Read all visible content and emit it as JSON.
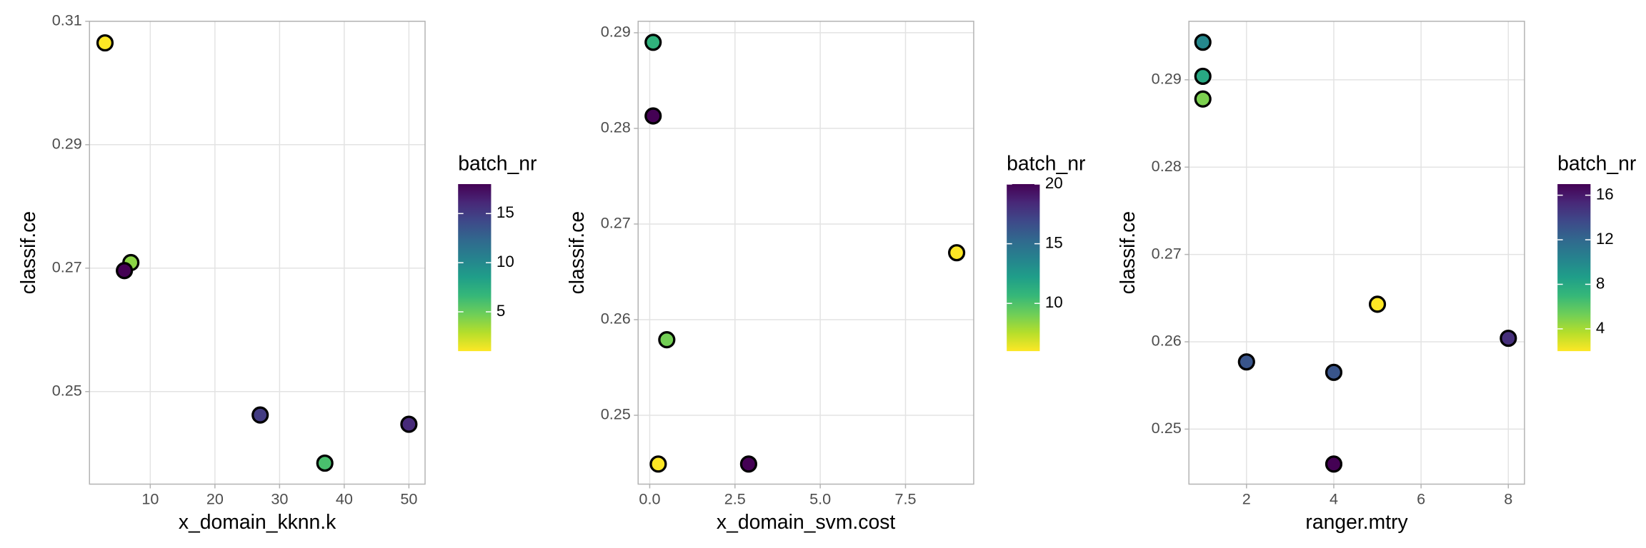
{
  "chart_data": [
    {
      "type": "scatter",
      "x_label": "x_domain_kknn.k",
      "y_label": "classif.ce",
      "x": [
        3,
        7,
        6,
        27,
        37,
        50
      ],
      "y": [
        0.3065,
        0.2709,
        0.2696,
        0.2462,
        0.2384,
        0.2447
      ],
      "color_values": [
        1,
        4,
        18,
        15,
        6,
        16
      ],
      "xlim": [
        0.6,
        52.5
      ],
      "ylim": [
        0.235,
        0.31
      ],
      "xticks": [
        10,
        20,
        30,
        40,
        50
      ],
      "yticks": [
        0.25,
        0.27,
        0.29,
        0.31
      ],
      "colorbar": {
        "title": "batch_nr",
        "lim": [
          1,
          18
        ],
        "ticks": [
          5,
          10,
          15
        ]
      },
      "grid": true
    },
    {
      "type": "scatter",
      "x_label": "x_domain_svm.cost",
      "y_label": "classif.ce",
      "x": [
        0.1,
        0.1,
        9.0,
        0.5,
        0.25,
        2.9
      ],
      "y": [
        0.289,
        0.2813,
        0.267,
        0.2579,
        0.2449,
        0.2449
      ],
      "color_values": [
        11,
        20,
        6,
        9,
        6,
        20
      ],
      "xlim": [
        -0.34,
        9.5
      ],
      "ylim": [
        0.2428,
        0.2912
      ],
      "xticks": [
        {
          "value": 0,
          "label": "0.0"
        },
        2.5,
        {
          "value": 5,
          "label": "5.0"
        },
        7.5
      ],
      "yticks": [
        0.25,
        0.26,
        0.27,
        0.28,
        0.29
      ],
      "colorbar": {
        "title": "batch_nr",
        "lim": [
          6,
          20
        ],
        "ticks": [
          10,
          15,
          20
        ]
      },
      "grid": true
    },
    {
      "type": "scatter",
      "x_label": "ranger.mtry",
      "y_label": "classif.ce",
      "x": [
        1,
        1,
        1,
        5,
        2,
        4,
        8,
        4
      ],
      "y": [
        0.2943,
        0.2904,
        0.2878,
        0.2643,
        0.2577,
        0.2565,
        0.2604,
        0.246
      ],
      "color_values": [
        10,
        8,
        5,
        2,
        13,
        13,
        15,
        17
      ],
      "xlim": [
        0.68,
        8.37
      ],
      "ylim": [
        0.2437,
        0.2967
      ],
      "xticks": [
        2,
        4,
        6,
        8
      ],
      "yticks": [
        0.25,
        0.26,
        0.27,
        0.28,
        0.29
      ],
      "colorbar": {
        "title": "batch_nr",
        "lim": [
          2,
          17
        ],
        "ticks": [
          4,
          8,
          12,
          16
        ]
      },
      "grid": true
    }
  ]
}
